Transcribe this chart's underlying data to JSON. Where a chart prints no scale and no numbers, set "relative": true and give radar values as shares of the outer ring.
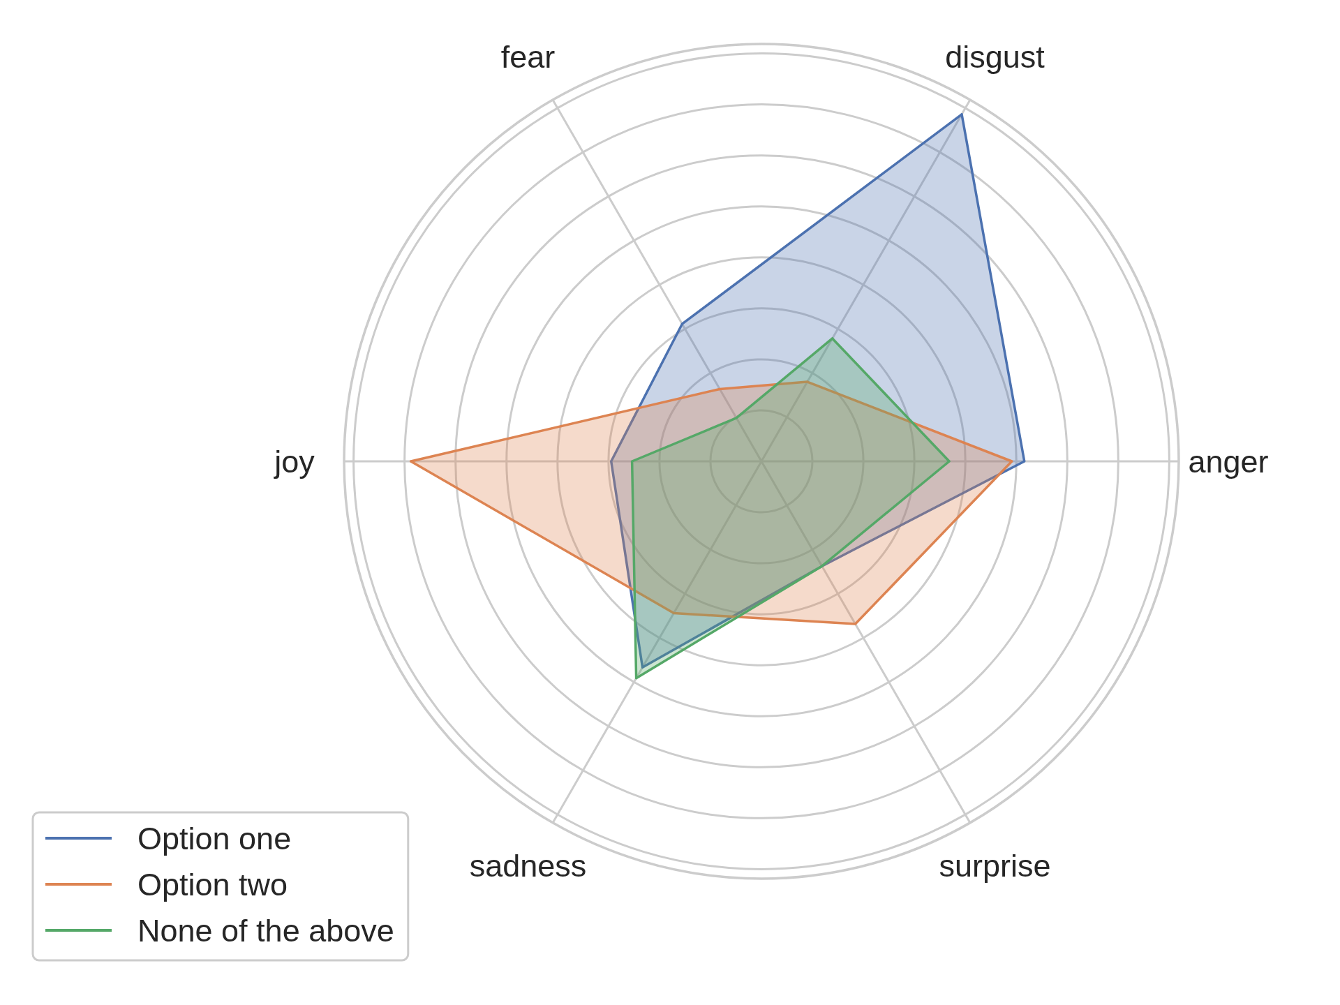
{
  "chart_data": {
    "type": "radar",
    "relative": true,
    "categories": [
      "disgust",
      "anger",
      "surprise",
      "sadness",
      "joy",
      "fear"
    ],
    "series": [
      {
        "name": "Option one",
        "color": "#4c72b0",
        "values": [
          0.96,
          0.63,
          0.29,
          0.57,
          0.36,
          0.38
        ]
      },
      {
        "name": "Option two",
        "color": "#dd8452",
        "values": [
          0.22,
          0.6,
          0.45,
          0.42,
          0.84,
          0.2
        ]
      },
      {
        "name": "None of the above",
        "color": "#55a868",
        "values": [
          0.34,
          0.45,
          0.29,
          0.6,
          0.31,
          0.12
        ]
      }
    ],
    "grid": true,
    "legend": "bottom left",
    "marker": "none",
    "line_style": "solid"
  }
}
